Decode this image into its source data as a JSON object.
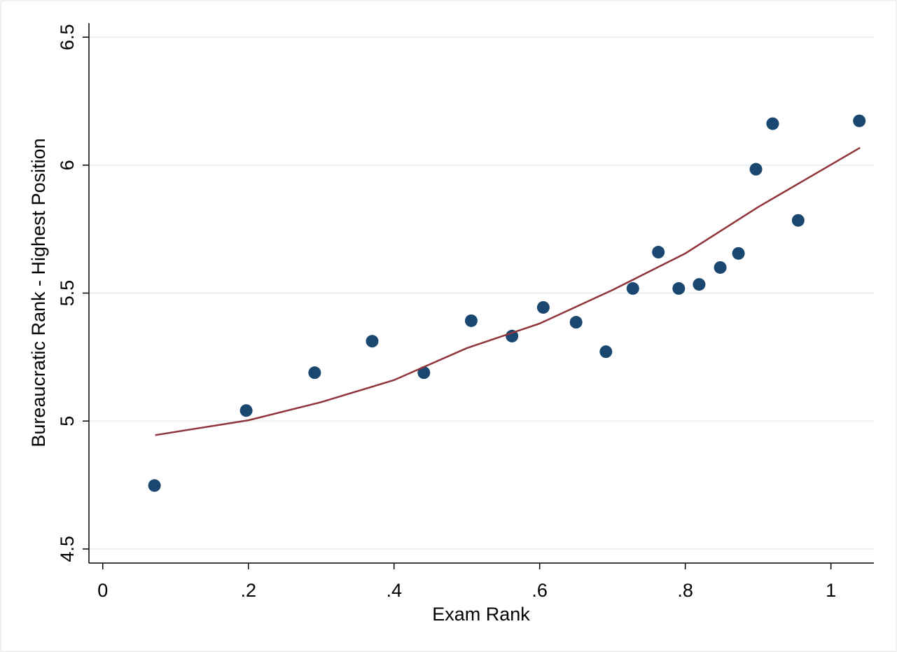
{
  "chart_data": {
    "type": "scatter",
    "x_label": "Exam Rank",
    "y_label": "Bureaucratic Rank - Highest Position",
    "xlim": [
      -0.019,
      1.059
    ],
    "ylim": [
      4.445,
      6.555
    ],
    "xticks": [
      0,
      {
        "value": 0.2,
        "label": ".2"
      },
      {
        "value": 0.4,
        "label": ".4"
      },
      {
        "value": 0.6,
        "label": ".6"
      },
      {
        "value": 0.8,
        "label": ".8"
      },
      1
    ],
    "yticks": [
      4.5,
      5,
      5.5,
      6,
      6.5
    ],
    "grid": true,
    "series": [
      {
        "type": "scatter",
        "color": "#1a476f",
        "x": [
          0.071,
          0.197,
          0.291,
          0.37,
          0.441,
          0.506,
          0.562,
          0.605,
          0.65,
          0.691,
          0.728,
          0.763,
          0.791,
          0.819,
          0.848,
          0.873,
          0.897,
          0.92,
          0.955,
          1.039
        ],
        "values": [
          4.748,
          5.041,
          5.189,
          5.312,
          5.189,
          5.392,
          5.332,
          5.444,
          5.386,
          5.271,
          5.518,
          5.66,
          5.518,
          5.534,
          5.6,
          5.655,
          5.984,
          6.162,
          5.784,
          6.173
        ]
      },
      {
        "type": "line",
        "color": "#90353b",
        "x": [
          0.072,
          0.2,
          0.3,
          0.4,
          0.5,
          0.6,
          0.7,
          0.8,
          0.9,
          1.04
        ],
        "values": [
          4.945,
          5.003,
          5.074,
          5.16,
          5.285,
          5.381,
          5.512,
          5.655,
          5.836,
          6.068
        ]
      }
    ]
  }
}
